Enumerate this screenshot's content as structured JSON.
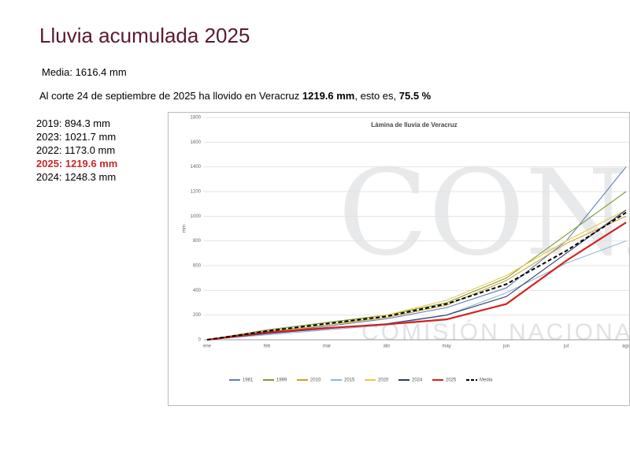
{
  "header": {
    "title": "Lluvia acumulada 2025"
  },
  "mean": "Media: 1616.4 mm",
  "summary": {
    "text1": "Al corte 24 de septiembre de 2025 ha llovido en Veracruz ",
    "bold1": "1219.6 mm",
    "text2": ", esto es, ",
    "bold2": "75.5 %"
  },
  "years": [
    "2019: 894.3 mm",
    "2023: 1021.7 mm",
    "2022: 1173.0 mm",
    "2025: 1219.6 mm",
    "2024: 1248.3 mm"
  ],
  "watermark": {
    "logo": "CONAGUA",
    "name": "COMISIÓN NACIONAL DEL AGUA"
  },
  "chart_data": {
    "type": "line",
    "title": "Lámina de lluvia de Veracruz",
    "y_label": "mm",
    "categories": [
      "ene",
      "feb",
      "mar",
      "abr",
      "may",
      "jun",
      "jul",
      "ago"
    ],
    "ylim": [
      0,
      1800
    ],
    "yticks": [
      0,
      200,
      400,
      600,
      800,
      1000,
      1200,
      1400,
      1600,
      1800
    ],
    "grid": true,
    "series": [
      {
        "name": "1981",
        "color": "#5b7fb8",
        "values": [
          0,
          60,
          110,
          170,
          260,
          420,
          800,
          1400
        ]
      },
      {
        "name": "1999",
        "color": "#7a9a3a",
        "values": [
          0,
          80,
          140,
          200,
          300,
          500,
          850,
          1200
        ]
      },
      {
        "name": "2010",
        "color": "#c9a227",
        "values": [
          0,
          70,
          120,
          180,
          280,
          480,
          780,
          1000
        ]
      },
      {
        "name": "2015",
        "color": "#8fb7d9",
        "values": [
          0,
          40,
          80,
          120,
          200,
          380,
          620,
          800
        ]
      },
      {
        "name": "2020",
        "color": "#e8c84a",
        "values": [
          0,
          60,
          120,
          200,
          320,
          520,
          800,
          1050
        ]
      },
      {
        "name": "2024",
        "color": "#2b3a67",
        "values": [
          0,
          50,
          90,
          130,
          200,
          350,
          700,
          1050
        ]
      },
      {
        "name": "2025",
        "color": "#d62020",
        "values": [
          0,
          60,
          95,
          125,
          165,
          290,
          640,
          950
        ]
      },
      {
        "name": "Media",
        "color": "#000000",
        "dashed": true,
        "values": [
          0,
          70,
          130,
          190,
          290,
          450,
          720,
          1030
        ]
      }
    ]
  }
}
